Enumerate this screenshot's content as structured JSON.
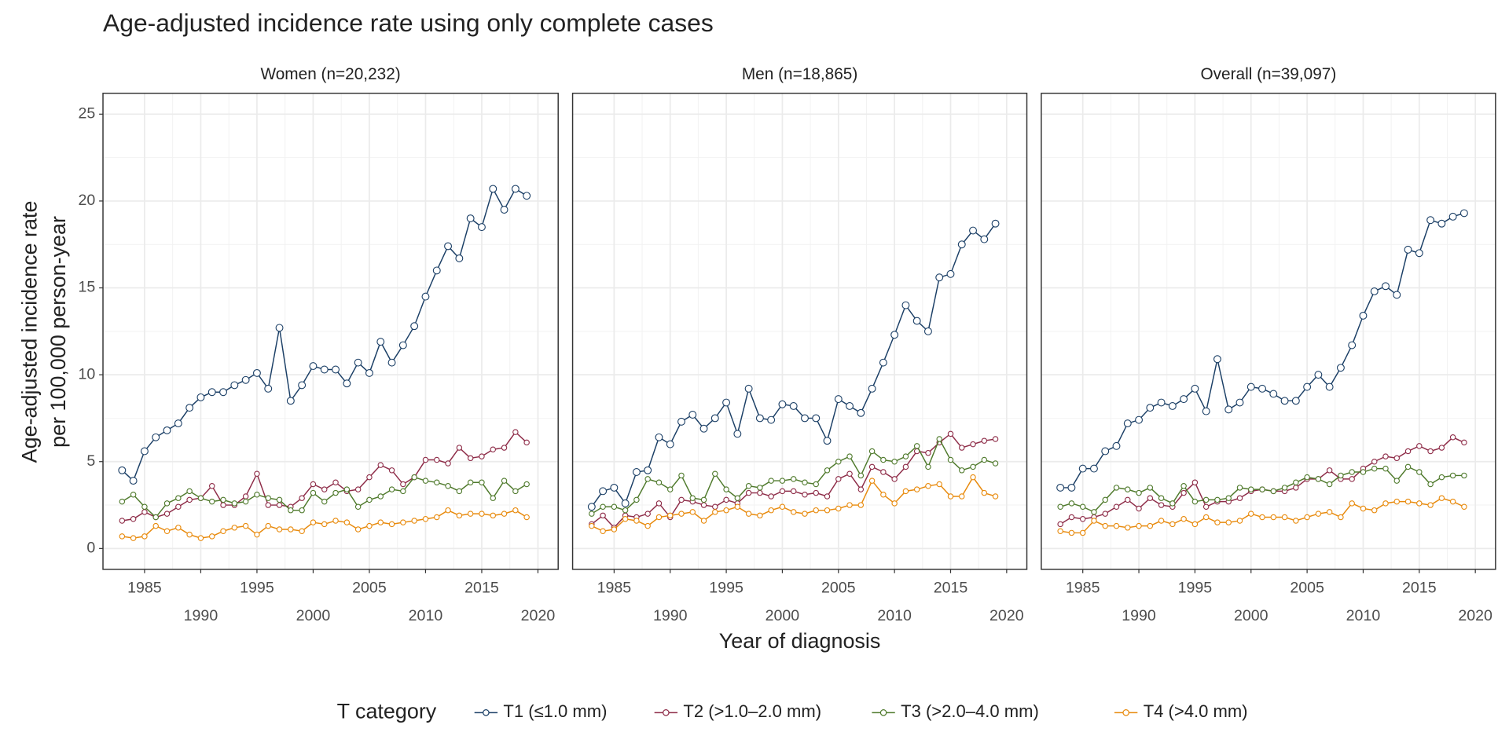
{
  "title": "Age-adjusted incidence rate using only complete cases",
  "y_label": [
    "Age-adjusted incidence rate",
    "per 100,000 person-year"
  ],
  "x_label": "Year of diagnosis",
  "legend_title": "T category",
  "chart_data": [
    {
      "type": "line",
      "title": "Women (n=20,232)",
      "x": [
        1983,
        1984,
        1985,
        1986,
        1987,
        1988,
        1989,
        1990,
        1991,
        1992,
        1993,
        1994,
        1995,
        1996,
        1997,
        1998,
        1999,
        2000,
        2001,
        2002,
        2003,
        2004,
        2005,
        2006,
        2007,
        2008,
        2009,
        2010,
        2011,
        2012,
        2013,
        2014,
        2015,
        2016,
        2017,
        2018,
        2019
      ],
      "xlim": [
        1981.3,
        2021.8
      ],
      "xticks": [
        1985,
        1990,
        1995,
        2000,
        2005,
        2010,
        2015,
        2020
      ],
      "ylim": [
        -1.2,
        26.2
      ],
      "yticks": [
        0,
        5,
        10,
        15,
        20,
        25
      ],
      "grid": true,
      "series": [
        {
          "name": "T1 (≤1.0 mm)",
          "color": "#1b3f66",
          "values": [
            4.5,
            3.9,
            5.6,
            6.4,
            6.8,
            7.2,
            8.1,
            8.7,
            9.0,
            9.0,
            9.4,
            9.7,
            10.1,
            9.2,
            12.7,
            8.5,
            9.4,
            10.5,
            10.3,
            10.3,
            9.5,
            10.7,
            10.1,
            11.9,
            10.7,
            11.7,
            12.8,
            14.5,
            16.0,
            17.4,
            16.7,
            19.0,
            18.5,
            20.7,
            19.5,
            20.7,
            20.3
          ]
        },
        {
          "name": "T2 (>1.0–2.0 mm)",
          "color": "#8e2c48",
          "values": [
            1.6,
            1.7,
            2.1,
            1.8,
            2.0,
            2.4,
            2.8,
            2.9,
            3.6,
            2.5,
            2.5,
            3.0,
            4.3,
            2.5,
            2.5,
            2.4,
            2.9,
            3.7,
            3.4,
            3.8,
            3.3,
            3.4,
            4.1,
            4.8,
            4.5,
            3.7,
            4.1,
            5.1,
            5.1,
            4.9,
            5.8,
            5.2,
            5.3,
            5.7,
            5.8,
            6.7,
            6.1
          ]
        },
        {
          "name": "T3 (>2.0–4.0 mm)",
          "color": "#4f7a2c",
          "values": [
            2.7,
            3.1,
            2.4,
            1.8,
            2.6,
            2.9,
            3.3,
            2.9,
            2.7,
            2.8,
            2.6,
            2.7,
            3.1,
            2.9,
            2.8,
            2.2,
            2.2,
            3.2,
            2.7,
            3.2,
            3.4,
            2.4,
            2.8,
            3.0,
            3.4,
            3.3,
            4.1,
            3.9,
            3.8,
            3.6,
            3.3,
            3.8,
            3.8,
            2.9,
            3.9,
            3.3,
            3.7
          ]
        },
        {
          "name": "T4 (>4.0 mm)",
          "color": "#e88a0c",
          "values": [
            0.7,
            0.6,
            0.7,
            1.3,
            1.0,
            1.2,
            0.8,
            0.6,
            0.7,
            1.0,
            1.2,
            1.3,
            0.8,
            1.3,
            1.1,
            1.1,
            1.0,
            1.5,
            1.4,
            1.6,
            1.5,
            1.1,
            1.3,
            1.5,
            1.4,
            1.5,
            1.6,
            1.7,
            1.8,
            2.2,
            1.9,
            2.0,
            2.0,
            1.9,
            2.0,
            2.2,
            1.8
          ]
        }
      ]
    },
    {
      "type": "line",
      "title": "Men (n=18,865)",
      "x": [
        1983,
        1984,
        1985,
        1986,
        1987,
        1988,
        1989,
        1990,
        1991,
        1992,
        1993,
        1994,
        1995,
        1996,
        1997,
        1998,
        1999,
        2000,
        2001,
        2002,
        2003,
        2004,
        2005,
        2006,
        2007,
        2008,
        2009,
        2010,
        2011,
        2012,
        2013,
        2014,
        2015,
        2016,
        2017,
        2018,
        2019
      ],
      "xlim": [
        1981.3,
        2021.8
      ],
      "xticks": [
        1985,
        1990,
        1995,
        2000,
        2005,
        2010,
        2015,
        2020
      ],
      "ylim": [
        -1.2,
        26.2
      ],
      "yticks": [
        0,
        5,
        10,
        15,
        20,
        25
      ],
      "grid": true,
      "series": [
        {
          "name": "T1 (≤1.0 mm)",
          "color": "#1b3f66",
          "values": [
            2.4,
            3.3,
            3.5,
            2.6,
            4.4,
            4.5,
            6.4,
            6.0,
            7.3,
            7.7,
            6.9,
            7.5,
            8.4,
            6.6,
            9.2,
            7.5,
            7.4,
            8.3,
            8.2,
            7.5,
            7.5,
            6.2,
            8.6,
            8.2,
            7.8,
            9.2,
            10.7,
            12.3,
            14.0,
            13.1,
            12.5,
            15.6,
            15.8,
            17.5,
            18.3,
            17.8,
            18.7
          ]
        },
        {
          "name": "T2 (>1.0–2.0 mm)",
          "color": "#8e2c48",
          "values": [
            1.4,
            1.9,
            1.2,
            1.9,
            1.8,
            2.0,
            2.6,
            1.8,
            2.8,
            2.7,
            2.5,
            2.4,
            2.8,
            2.6,
            3.2,
            3.2,
            3.0,
            3.3,
            3.3,
            3.1,
            3.2,
            3.0,
            4.0,
            4.3,
            3.4,
            4.7,
            4.4,
            4.0,
            4.7,
            5.6,
            5.5,
            6.1,
            6.6,
            5.8,
            6.0,
            6.2,
            6.3
          ]
        },
        {
          "name": "T3 (>2.0–4.0 mm)",
          "color": "#4f7a2c",
          "values": [
            2.0,
            2.4,
            2.4,
            2.2,
            2.8,
            4.0,
            3.8,
            3.4,
            4.2,
            2.9,
            2.8,
            4.3,
            3.4,
            2.9,
            3.6,
            3.5,
            3.9,
            3.9,
            4.0,
            3.8,
            3.7,
            4.5,
            5.0,
            5.3,
            4.2,
            5.6,
            5.1,
            5.0,
            5.3,
            5.9,
            4.7,
            6.3,
            5.1,
            4.5,
            4.7,
            5.1,
            4.9
          ]
        },
        {
          "name": "T4 (>4.0 mm)",
          "color": "#e88a0c",
          "values": [
            1.3,
            1.0,
            1.1,
            1.7,
            1.6,
            1.3,
            1.8,
            1.9,
            2.0,
            2.1,
            1.6,
            2.1,
            2.2,
            2.4,
            2.0,
            1.9,
            2.2,
            2.4,
            2.1,
            2.0,
            2.2,
            2.2,
            2.3,
            2.5,
            2.5,
            3.9,
            3.1,
            2.6,
            3.3,
            3.4,
            3.6,
            3.7,
            3.0,
            3.0,
            4.1,
            3.2,
            3.0
          ]
        }
      ]
    },
    {
      "type": "line",
      "title": "Overall (n=39,097)",
      "x": [
        1983,
        1984,
        1985,
        1986,
        1987,
        1988,
        1989,
        1990,
        1991,
        1992,
        1993,
        1994,
        1995,
        1996,
        1997,
        1998,
        1999,
        2000,
        2001,
        2002,
        2003,
        2004,
        2005,
        2006,
        2007,
        2008,
        2009,
        2010,
        2011,
        2012,
        2013,
        2014,
        2015,
        2016,
        2017,
        2018,
        2019
      ],
      "xlim": [
        1981.3,
        2021.8
      ],
      "xticks": [
        1985,
        1990,
        1995,
        2000,
        2005,
        2010,
        2015,
        2020
      ],
      "ylim": [
        -1.2,
        26.2
      ],
      "yticks": [
        0,
        5,
        10,
        15,
        20,
        25
      ],
      "grid": true,
      "series": [
        {
          "name": "T1 (≤1.0 mm)",
          "color": "#1b3f66",
          "values": [
            3.5,
            3.5,
            4.6,
            4.6,
            5.6,
            5.9,
            7.2,
            7.4,
            8.1,
            8.4,
            8.2,
            8.6,
            9.2,
            7.9,
            10.9,
            8.0,
            8.4,
            9.3,
            9.2,
            8.9,
            8.5,
            8.5,
            9.3,
            10.0,
            9.3,
            10.4,
            11.7,
            13.4,
            14.8,
            15.1,
            14.6,
            17.2,
            17.0,
            18.9,
            18.7,
            19.1,
            19.3
          ]
        },
        {
          "name": "T2 (>1.0–2.0 mm)",
          "color": "#8e2c48",
          "values": [
            1.4,
            1.8,
            1.7,
            1.8,
            2.0,
            2.4,
            2.8,
            2.3,
            2.9,
            2.5,
            2.4,
            3.2,
            3.8,
            2.4,
            2.7,
            2.7,
            2.9,
            3.3,
            3.4,
            3.3,
            3.3,
            3.5,
            4.0,
            4.0,
            4.5,
            4.0,
            4.0,
            4.6,
            5.0,
            5.3,
            5.2,
            5.6,
            5.9,
            5.6,
            5.8,
            6.4,
            6.1
          ]
        },
        {
          "name": "T3 (>2.0–4.0 mm)",
          "color": "#4f7a2c",
          "values": [
            2.4,
            2.6,
            2.4,
            2.1,
            2.8,
            3.5,
            3.4,
            3.2,
            3.5,
            2.9,
            2.6,
            3.6,
            2.7,
            2.8,
            2.8,
            2.9,
            3.5,
            3.4,
            3.4,
            3.3,
            3.5,
            3.8,
            4.1,
            4.0,
            3.7,
            4.2,
            4.4,
            4.4,
            4.6,
            4.6,
            3.9,
            4.7,
            4.4,
            3.7,
            4.1,
            4.2,
            4.2
          ]
        },
        {
          "name": "T4 (>4.0 mm)",
          "color": "#e88a0c",
          "values": [
            1.0,
            0.9,
            0.9,
            1.6,
            1.3,
            1.3,
            1.2,
            1.3,
            1.3,
            1.6,
            1.4,
            1.7,
            1.4,
            1.8,
            1.5,
            1.5,
            1.6,
            2.0,
            1.8,
            1.8,
            1.8,
            1.6,
            1.8,
            2.0,
            2.1,
            1.8,
            2.6,
            2.3,
            2.2,
            2.6,
            2.7,
            2.7,
            2.6,
            2.5,
            2.9,
            2.7,
            2.4
          ]
        }
      ]
    }
  ]
}
